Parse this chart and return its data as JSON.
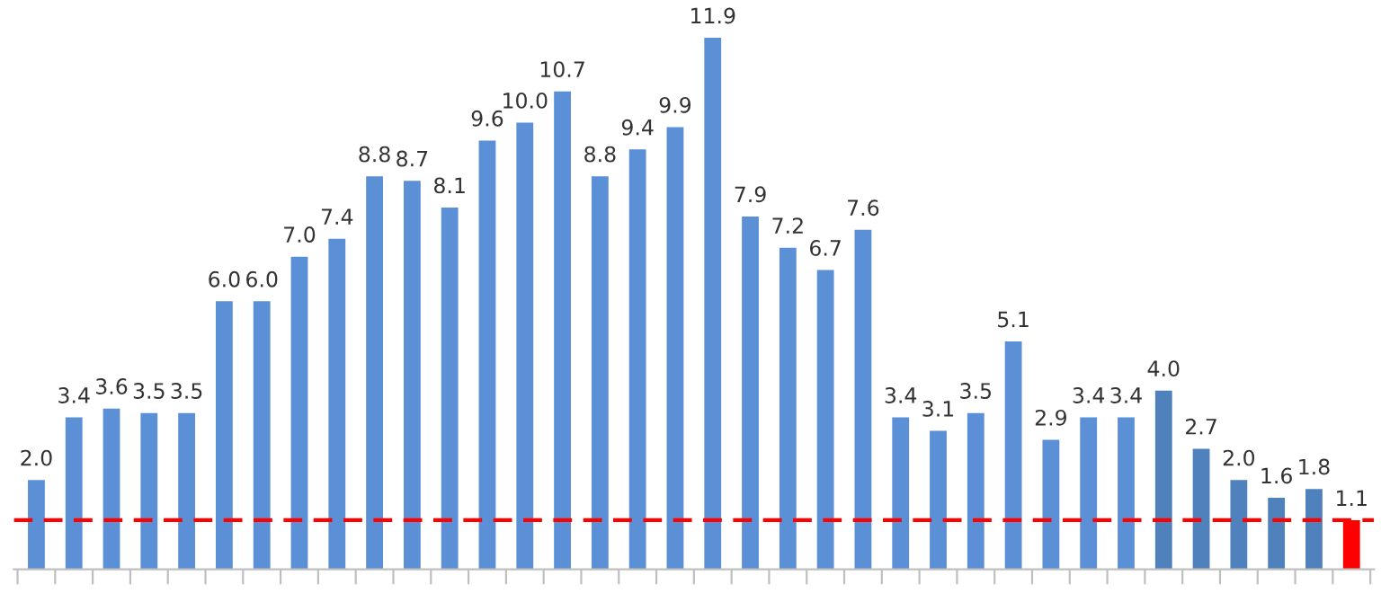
{
  "chart_data": {
    "type": "bar",
    "categories": [
      null,
      null,
      null,
      null,
      null,
      null,
      null,
      null,
      null,
      null,
      null,
      null,
      null,
      null,
      null,
      null,
      null,
      null,
      null,
      null,
      null,
      null,
      null,
      null,
      null,
      null,
      null,
      null,
      null,
      null,
      null,
      null,
      null,
      null,
      null,
      null
    ],
    "values": [
      2.0,
      3.4,
      3.6,
      3.5,
      3.5,
      6.0,
      6.0,
      7.0,
      7.4,
      8.8,
      8.7,
      8.1,
      9.6,
      10.0,
      10.7,
      8.8,
      9.4,
      9.9,
      11.9,
      7.9,
      7.2,
      6.7,
      7.6,
      3.4,
      3.1,
      3.5,
      5.1,
      2.9,
      3.4,
      3.4,
      4.0,
      2.7,
      2.0,
      1.6,
      1.8,
      1.1
    ],
    "colors": [
      "#5b8fd6",
      "#5b8fd6",
      "#5b8fd6",
      "#5b8fd6",
      "#5b8fd6",
      "#5b8fd6",
      "#5b8fd6",
      "#5b8fd6",
      "#5b8fd6",
      "#5b8fd6",
      "#5b8fd6",
      "#5b8fd6",
      "#5b8fd6",
      "#5b8fd6",
      "#5b8fd6",
      "#5b8fd6",
      "#5b8fd6",
      "#5b8fd6",
      "#5b8fd6",
      "#5b8fd6",
      "#5b8fd6",
      "#5b8fd6",
      "#5b8fd6",
      "#5b8fd6",
      "#5b8fd6",
      "#5b8fd6",
      "#5b8fd6",
      "#5b8fd6",
      "#5b8fd6",
      "#5b8fd6",
      "#4f81bd",
      "#4f81bd",
      "#4f81bd",
      "#4f81bd",
      "#4f81bd",
      "#ff0000"
    ],
    "value_labels": [
      "2.0",
      "3.4",
      "3.6",
      "3.5",
      "3.5",
      "6.0",
      "6.0",
      "7.0",
      "7.4",
      "8.8",
      "8.7",
      "8.1",
      "9.6",
      "10.0",
      "10.7",
      "8.8",
      "9.4",
      "9.9",
      "11.9",
      "7.9",
      "7.2",
      "6.7",
      "7.6",
      "3.4",
      "3.1",
      "3.5",
      "5.1",
      "2.9",
      "3.4",
      "3.4",
      "4.0",
      "2.7",
      "2.0",
      "1.6",
      "1.8",
      "1.1"
    ],
    "grid": false,
    "legend": false,
    "ref_lines": [
      {
        "axis": "y",
        "value": 1.1,
        "label": null,
        "color": "#ff0000",
        "line_style": "dashed"
      }
    ]
  }
}
